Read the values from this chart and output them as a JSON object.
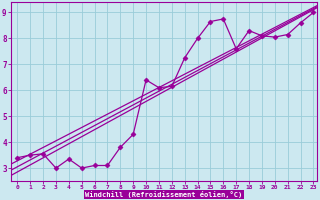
{
  "background_color": "#cce8f0",
  "grid_color": "#99ccd9",
  "line_color": "#990099",
  "axis_label_bg": "#7700aa",
  "xlim_min": -0.5,
  "xlim_max": 23.3,
  "ylim_min": 2.5,
  "ylim_max": 9.4,
  "xticks": [
    0,
    1,
    2,
    3,
    4,
    5,
    6,
    7,
    8,
    9,
    10,
    11,
    12,
    13,
    14,
    15,
    16,
    17,
    18,
    19,
    20,
    21,
    22,
    23
  ],
  "yticks": [
    3,
    4,
    5,
    6,
    7,
    8,
    9
  ],
  "xlabel": "Windchill (Refroidissement éolien,°C)",
  "data_x": [
    0,
    1,
    2,
    3,
    4,
    5,
    6,
    7,
    8,
    9,
    10,
    11,
    12,
    13,
    14,
    15,
    16,
    17,
    18,
    19,
    20,
    21,
    22,
    23
  ],
  "data_y": [
    3.4,
    3.5,
    3.55,
    3.0,
    3.35,
    3.0,
    3.1,
    3.1,
    3.8,
    4.3,
    6.4,
    6.1,
    6.15,
    7.25,
    8.0,
    8.65,
    8.75,
    7.6,
    8.3,
    8.1,
    8.05,
    8.15,
    8.6,
    9.0
  ],
  "reg_lines": [
    {
      "slope": 0.272,
      "intercept": 2.85
    },
    {
      "slope": 0.265,
      "intercept": 3.05
    },
    {
      "slope": 0.257,
      "intercept": 3.28
    }
  ],
  "marker": "D",
  "markersize": 2.5,
  "linewidth": 0.9
}
